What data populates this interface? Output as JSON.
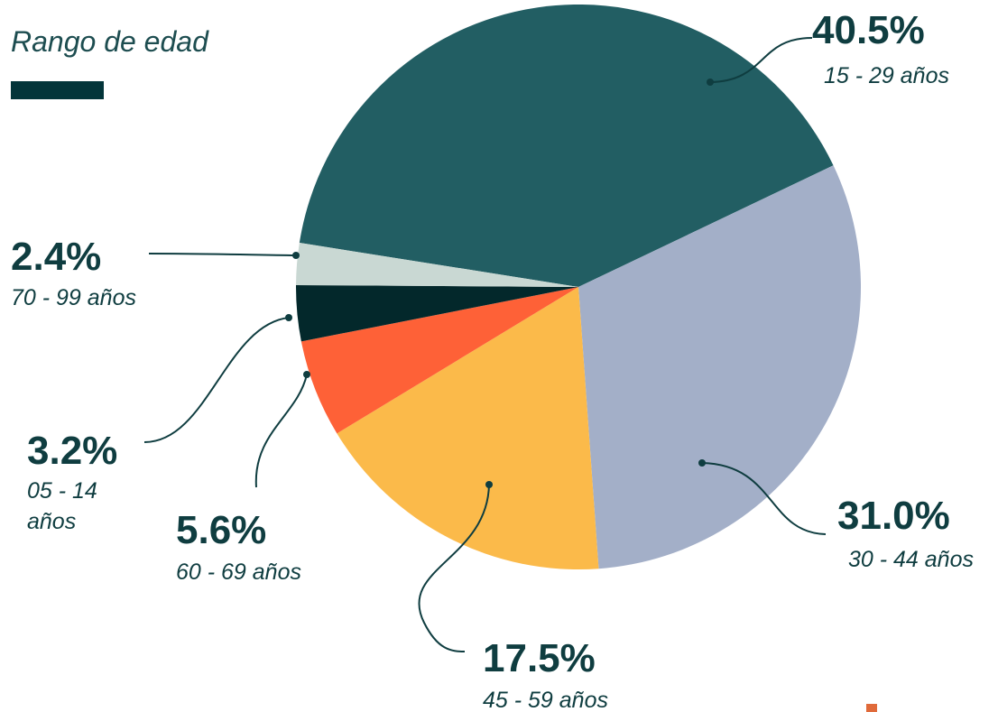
{
  "chart_data": {
    "type": "pie",
    "title": "Rango de edad",
    "categories": [
      "15 - 29 años",
      "30 - 44 años",
      "45 - 59 años",
      "60 - 69 años",
      "05 - 14 años",
      "70 - 99 años"
    ],
    "values": [
      40.5,
      31.0,
      17.5,
      5.6,
      3.2,
      2.4
    ],
    "value_labels": [
      "40.5%",
      "31.0%",
      "17.5%",
      "5.6%",
      "3.2%",
      "2.4%"
    ],
    "colors": [
      "#225e63",
      "#a3afc8",
      "#fbba4a",
      "#fe6137",
      "#03282b",
      "#c9d8d3"
    ]
  }
}
